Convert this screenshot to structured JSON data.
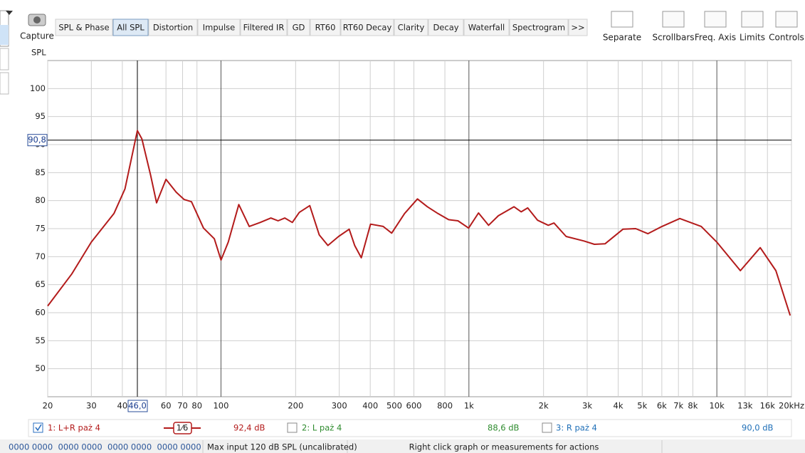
{
  "toolbar": {
    "capture": "Capture",
    "tabs": [
      "SPL & Phase",
      "All SPL",
      "Distortion",
      "Impulse",
      "Filtered IR",
      "GD",
      "RT60",
      "RT60 Decay",
      "Clarity",
      "Decay",
      "Waterfall",
      "Spectrogram",
      ">>"
    ],
    "active_tab": 1,
    "buttons": [
      "Separate",
      "Scrollbars",
      "Freq. Axis",
      "Limits",
      "Controls"
    ]
  },
  "chart_data": {
    "type": "line",
    "y_label": "SPL",
    "log_x": true,
    "grid": true,
    "xlim": [
      20,
      20000
    ],
    "ylim": [
      45,
      105
    ],
    "xticks": [
      20,
      30,
      40,
      60,
      70,
      80,
      100,
      200,
      300,
      400,
      500,
      600,
      800,
      {
        "value": 1000,
        "label": "1k"
      },
      {
        "value": 2000,
        "label": "2k"
      },
      {
        "value": 3000,
        "label": "3k"
      },
      {
        "value": 4000,
        "label": "4k"
      },
      {
        "value": 5000,
        "label": "5k"
      },
      {
        "value": 6000,
        "label": "6k"
      },
      {
        "value": 7000,
        "label": "7k"
      },
      {
        "value": 8000,
        "label": "8k"
      },
      {
        "value": 10000,
        "label": "10k"
      },
      {
        "value": 13000,
        "label": "13k"
      },
      {
        "value": 16000,
        "label": "16k"
      },
      {
        "value": 20000,
        "label": "20kHz"
      }
    ],
    "yticks": [
      50,
      55,
      60,
      65,
      70,
      75,
      80,
      85,
      90,
      95,
      100
    ],
    "x": [
      20,
      25,
      30,
      37,
      41,
      44,
      46,
      48,
      52,
      55,
      60,
      66,
      71,
      76,
      85,
      94,
      100,
      107,
      118,
      130,
      144,
      159,
      170,
      181,
      194,
      207,
      228,
      249,
      270,
      298,
      329,
      346,
      368,
      401,
      451,
      488,
      550,
      620,
      680,
      750,
      828,
      903,
      997,
      1093,
      1200,
      1315,
      1521,
      1625,
      1726,
      1892,
      2089,
      2203,
      2466,
      2908,
      3208,
      3543,
      4180,
      4710,
      5270,
      6010,
      7090,
      8650,
      10000,
      12440,
      14960,
      17300,
      19760
    ],
    "series": [
      {
        "name": "1: L+R paż 4",
        "color": "#b31b1b",
        "values": [
          61.2,
          66.9,
          72.6,
          77.7,
          82.1,
          88.5,
          92.5,
          91.0,
          84.6,
          79.6,
          83.8,
          81.5,
          80.2,
          79.8,
          75.1,
          73.2,
          69.4,
          72.6,
          79.3,
          75.4,
          76.1,
          76.9,
          76.4,
          76.9,
          76.1,
          77.9,
          79.1,
          73.9,
          72.0,
          73.6,
          74.9,
          72.0,
          69.8,
          75.8,
          75.4,
          74.2,
          77.7,
          80.3,
          78.9,
          77.7,
          76.6,
          76.4,
          75.1,
          77.8,
          75.6,
          77.3,
          78.9,
          78.0,
          78.7,
          76.5,
          75.6,
          76.0,
          73.6,
          72.8,
          72.2,
          72.3,
          74.9,
          75.0,
          74.1,
          75.4,
          76.8,
          75.4,
          72.6,
          67.5,
          71.6,
          67.5,
          59.5
        ]
      }
    ],
    "cursor": {
      "x": 46,
      "x_label": "46,0",
      "y": 90.8,
      "y_label": "90,8"
    }
  },
  "legend_panel": {
    "smoothing": "1⁄6",
    "entries": [
      {
        "level": "92,4 dB",
        "checked": true,
        "color": "#b31b1b"
      },
      {
        "name": "2: L paż 4",
        "level": "88,6 dB",
        "checked": false,
        "color": "#2e8b2e"
      },
      {
        "name": "3: R paż 4",
        "level": "90,0 dB",
        "checked": false,
        "color": "#2070b8"
      }
    ]
  },
  "status_bar": {
    "bits": "0000 0000  0000 0000  0000 0000  0000 0000",
    "input": "Max input 120 dB SPL (uncalibrated)",
    "hint": "Right click graph or measurements for actions"
  }
}
